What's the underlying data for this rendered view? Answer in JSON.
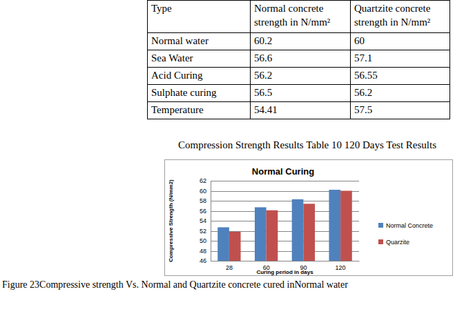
{
  "table": {
    "header": [
      "Type",
      "Normal concrete strength in N/mm²",
      "Quartzite concrete strength in N/mm²"
    ],
    "rows": [
      [
        "Normal water",
        60.2,
        60
      ],
      [
        "Sea Water",
        56.6,
        57.1
      ],
      [
        "Acid Curing",
        56.2,
        56.55
      ],
      [
        "Sulphate curing",
        56.5,
        56.2
      ],
      [
        "Temperature",
        54.41,
        57.5
      ]
    ]
  },
  "table_caption": "Compression Strength Results Table 10 120  Days Test Results",
  "chart_data": {
    "type": "bar",
    "title": "Normal Curing",
    "x_label": "Curing period in days",
    "y_label": "Compressive Strength (N/mm2)",
    "categories": [
      "28",
      "60",
      "90",
      "120"
    ],
    "series": [
      {
        "name": "Normal Concrete",
        "color": "#4f81bd",
        "values": [
          52.7,
          56.7,
          58.3,
          60.2
        ]
      },
      {
        "name": "Quarzite",
        "color": "#c0504d",
        "values": [
          51.8,
          56.1,
          57.4,
          60.0
        ]
      }
    ],
    "ylim": [
      46,
      62
    ],
    "yticks": [
      46,
      48,
      50,
      52,
      54,
      56,
      58,
      60,
      62
    ],
    "grid": true,
    "legend": "right"
  },
  "figure_caption": "Figure 23Compressive strength Vs. Normal and Quartzite concrete cured inNormal water"
}
